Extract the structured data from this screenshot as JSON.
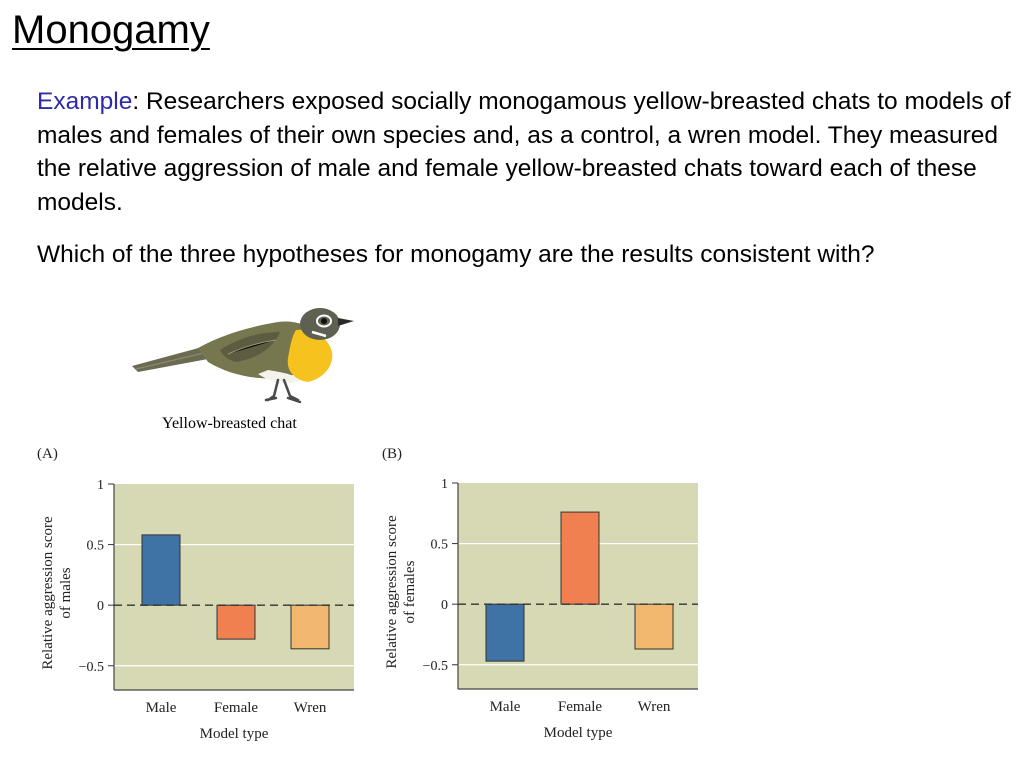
{
  "slide": {
    "title": "Monogamy",
    "example_label": "Example",
    "example_sep": ":",
    "example_text": " Researchers exposed socially monogamous yellow-breasted chats to models of males and females of their own species and, as a control, a wren model.  They measured the relative aggression of male and female yellow-breasted chats toward each of these models.",
    "question": "Which of the three hypotheses for monogamy are the results consistent with?"
  },
  "figure": {
    "bird_caption": "Yellow-breasted chat"
  },
  "colors": {
    "plot_bg": "#d6d9b4",
    "male_bar": "#3f72a5",
    "female_bar": "#f08050",
    "wren_bar": "#f2b870",
    "example_label": "#2f2ba8"
  },
  "chart_data": [
    {
      "type": "bar",
      "panel": "(A)",
      "categories": [
        "Male",
        "Female",
        "Wren"
      ],
      "values": [
        0.58,
        -0.28,
        -0.36
      ],
      "xlabel": "Model type",
      "ylabel_lines": [
        "Relative aggression score",
        "of males"
      ],
      "ylim": [
        -0.7,
        1
      ],
      "yticks": [
        1,
        0.5,
        0,
        -0.5
      ],
      "ytick_labels": [
        "1",
        "0.5",
        "0",
        "−0.5"
      ],
      "grid": true
    },
    {
      "type": "bar",
      "panel": "(B)",
      "categories": [
        "Male",
        "Female",
        "Wren"
      ],
      "values": [
        -0.47,
        0.76,
        -0.37
      ],
      "xlabel": "Model type",
      "ylabel_lines": [
        "Relative aggression score",
        "of females"
      ],
      "ylim": [
        -0.7,
        1
      ],
      "yticks": [
        1,
        0.5,
        0,
        -0.5
      ],
      "ytick_labels": [
        "1",
        "0.5",
        "0",
        "−0.5"
      ],
      "grid": true
    }
  ]
}
